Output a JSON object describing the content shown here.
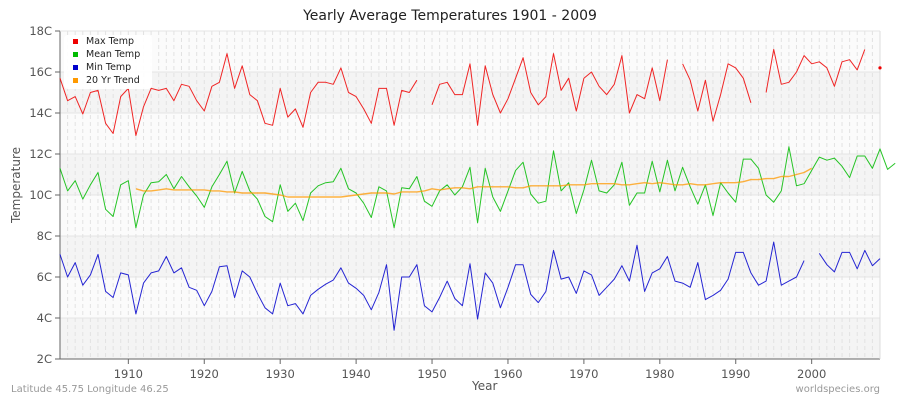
{
  "title": "Yearly Average Temperatures 1901 - 2009",
  "footer": {
    "location": "Latitude 45.75 Longitude 46.25",
    "source": "worldspecies.org"
  },
  "legend": [
    {
      "label": "Max Temp",
      "color": "#ee0000"
    },
    {
      "label": "Mean Temp",
      "color": "#00bb00"
    },
    {
      "label": "Min Temp",
      "color": "#0000cc"
    },
    {
      "label": "20 Yr Trend",
      "color": "#ff9900"
    }
  ],
  "chart_data": {
    "type": "line",
    "title": "Yearly Average Temperatures 1901 - 2009",
    "xlabel": "Year",
    "ylabel": "Temperature",
    "xlim": [
      1901,
      2009
    ],
    "ylim": [
      2,
      18
    ],
    "x_ticks": [
      1910,
      1920,
      1930,
      1940,
      1950,
      1960,
      1970,
      1980,
      1990,
      2000
    ],
    "y_ticks": [
      "2C",
      "4C",
      "6C",
      "8C",
      "10C",
      "12C",
      "14C",
      "16C",
      "18C"
    ],
    "grid": true,
    "legend_position": "top-left",
    "start_year": 1901,
    "series": [
      {
        "name": "Max Temp",
        "color": "#ee0000",
        "values": [
          15.7,
          14.6,
          14.8,
          13.95,
          15.0,
          15.1,
          13.5,
          13.0,
          14.8,
          15.2,
          12.9,
          14.3,
          15.2,
          15.1,
          15.2,
          14.6,
          15.4,
          15.3,
          14.6,
          14.1,
          15.3,
          15.5,
          16.9,
          15.2,
          16.3,
          14.9,
          14.6,
          13.5,
          13.4,
          15.2,
          13.8,
          14.2,
          13.3,
          15.0,
          15.5,
          15.5,
          15.4,
          16.2,
          15.0,
          14.8,
          14.2,
          13.5,
          15.2,
          15.2,
          13.4,
          15.1,
          15.0,
          15.6,
          null,
          14.4,
          15.4,
          15.5,
          14.9,
          14.9,
          16.4,
          13.4,
          16.3,
          14.9,
          14.0,
          14.7,
          15.7,
          16.7,
          15.0,
          14.4,
          14.8,
          16.9,
          15.1,
          15.7,
          14.1,
          15.7,
          16.0,
          15.3,
          14.9,
          15.4,
          16.8,
          14.0,
          14.9,
          14.7,
          16.2,
          14.6,
          16.6,
          null,
          16.4,
          15.6,
          14.1,
          15.6,
          13.6,
          14.9,
          16.4,
          16.2,
          15.7,
          14.5,
          null,
          15.0,
          17.1,
          15.4,
          15.5,
          16.0,
          16.8,
          16.4,
          16.5,
          16.2,
          15.3,
          16.5,
          16.6,
          16.1,
          17.1,
          null,
          16.2
        ]
      },
      {
        "name": "Mean Temp",
        "color": "#00bb00",
        "values": [
          11.3,
          10.2,
          10.7,
          9.8,
          10.5,
          11.1,
          9.3,
          8.95,
          10.5,
          10.7,
          8.4,
          10.0,
          10.6,
          10.65,
          11.0,
          10.3,
          10.9,
          10.4,
          9.95,
          9.4,
          10.4,
          11.0,
          11.65,
          10.1,
          11.15,
          10.2,
          9.8,
          8.95,
          8.7,
          10.5,
          9.2,
          9.6,
          8.75,
          10.1,
          10.45,
          10.6,
          10.65,
          11.3,
          10.3,
          10.1,
          9.6,
          8.9,
          10.4,
          10.2,
          8.4,
          10.35,
          10.3,
          10.9,
          9.7,
          9.45,
          10.2,
          10.5,
          10.0,
          10.4,
          11.35,
          8.65,
          11.3,
          9.9,
          9.2,
          10.2,
          11.2,
          11.6,
          10.05,
          9.6,
          9.7,
          12.15,
          10.2,
          10.6,
          9.1,
          10.25,
          11.7,
          10.2,
          10.1,
          10.5,
          11.6,
          9.5,
          10.1,
          10.1,
          11.65,
          10.15,
          11.7,
          10.2,
          11.35,
          10.4,
          9.55,
          10.5,
          9.0,
          10.6,
          10.1,
          9.65,
          11.75,
          11.75,
          11.3,
          10.0,
          9.65,
          10.2,
          12.35,
          10.45,
          10.55,
          11.2,
          11.85,
          11.7,
          11.8,
          11.4,
          10.85,
          11.9,
          11.9,
          11.3,
          12.25,
          11.25,
          11.55
        ]
      },
      {
        "name": "Min Temp",
        "color": "#0000cc",
        "values": [
          7.1,
          6.0,
          6.7,
          5.6,
          6.1,
          7.1,
          5.3,
          5.0,
          6.2,
          6.1,
          4.2,
          5.7,
          6.2,
          6.3,
          7.0,
          6.2,
          6.45,
          5.5,
          5.35,
          4.6,
          5.3,
          6.5,
          6.55,
          5.0,
          6.3,
          6.0,
          5.2,
          4.5,
          4.2,
          5.7,
          4.6,
          4.7,
          4.2,
          5.1,
          5.4,
          5.65,
          5.85,
          6.45,
          5.7,
          5.45,
          5.1,
          4.4,
          5.25,
          6.6,
          3.4,
          6.0,
          6.0,
          6.6,
          4.6,
          4.3,
          5.0,
          5.8,
          4.95,
          4.6,
          6.65,
          3.95,
          6.2,
          5.7,
          4.5,
          5.5,
          6.6,
          6.6,
          5.15,
          4.75,
          5.3,
          7.3,
          5.9,
          6.0,
          5.2,
          6.3,
          6.1,
          5.1,
          5.5,
          5.9,
          6.55,
          5.8,
          7.55,
          5.3,
          6.2,
          6.4,
          7.0,
          5.8,
          5.7,
          5.5,
          6.7,
          4.9,
          5.1,
          5.35,
          5.9,
          7.2,
          7.2,
          6.2,
          5.6,
          5.8,
          7.7,
          5.6,
          5.8,
          6.0,
          6.8,
          null,
          7.15,
          6.6,
          6.25,
          7.2,
          7.2,
          6.4,
          7.3,
          6.55,
          6.9
        ]
      },
      {
        "name": "20 Yr Trend",
        "color": "#ff9900",
        "values": [
          null,
          null,
          null,
          null,
          null,
          null,
          null,
          null,
          null,
          null,
          10.3,
          10.2,
          10.2,
          10.25,
          10.3,
          10.25,
          10.25,
          10.25,
          10.25,
          10.25,
          10.2,
          10.2,
          10.15,
          10.15,
          10.1,
          10.1,
          10.1,
          10.1,
          10.05,
          10.0,
          9.9,
          9.9,
          9.9,
          9.9,
          9.9,
          9.9,
          9.9,
          9.9,
          9.95,
          10.0,
          10.05,
          10.1,
          10.1,
          10.1,
          10.05,
          10.15,
          10.15,
          10.15,
          10.2,
          10.3,
          10.25,
          10.3,
          10.35,
          10.35,
          10.3,
          10.4,
          10.4,
          10.4,
          10.4,
          10.4,
          10.35,
          10.35,
          10.45,
          10.45,
          10.45,
          10.45,
          10.45,
          10.5,
          10.5,
          10.5,
          10.55,
          10.55,
          10.55,
          10.55,
          10.5,
          10.5,
          10.55,
          10.6,
          10.55,
          10.6,
          10.55,
          10.5,
          10.5,
          10.55,
          10.5,
          10.5,
          10.55,
          10.6,
          10.6,
          10.6,
          10.65,
          10.75,
          10.75,
          10.8,
          10.8,
          10.9,
          10.9,
          11.0,
          11.1,
          11.3,
          null,
          null,
          null,
          null,
          null,
          null,
          null,
          null,
          null
        ]
      }
    ]
  }
}
